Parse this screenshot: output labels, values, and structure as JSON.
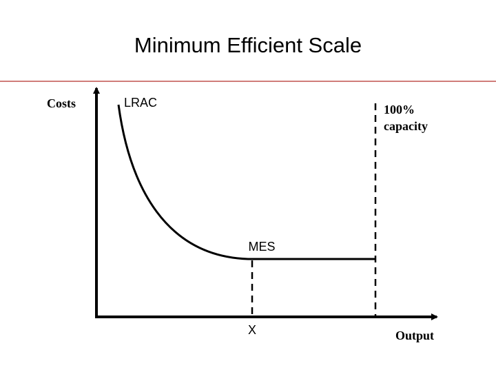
{
  "header": {
    "title": "Minimum Efficient Scale"
  },
  "diagram": {
    "y_axis_label": "Costs",
    "curve_label": "LRAC",
    "capacity_label": [
      "100%",
      "capacity"
    ],
    "mes_label": "MES",
    "x_point_label": "X",
    "x_axis_label": "Output"
  }
}
